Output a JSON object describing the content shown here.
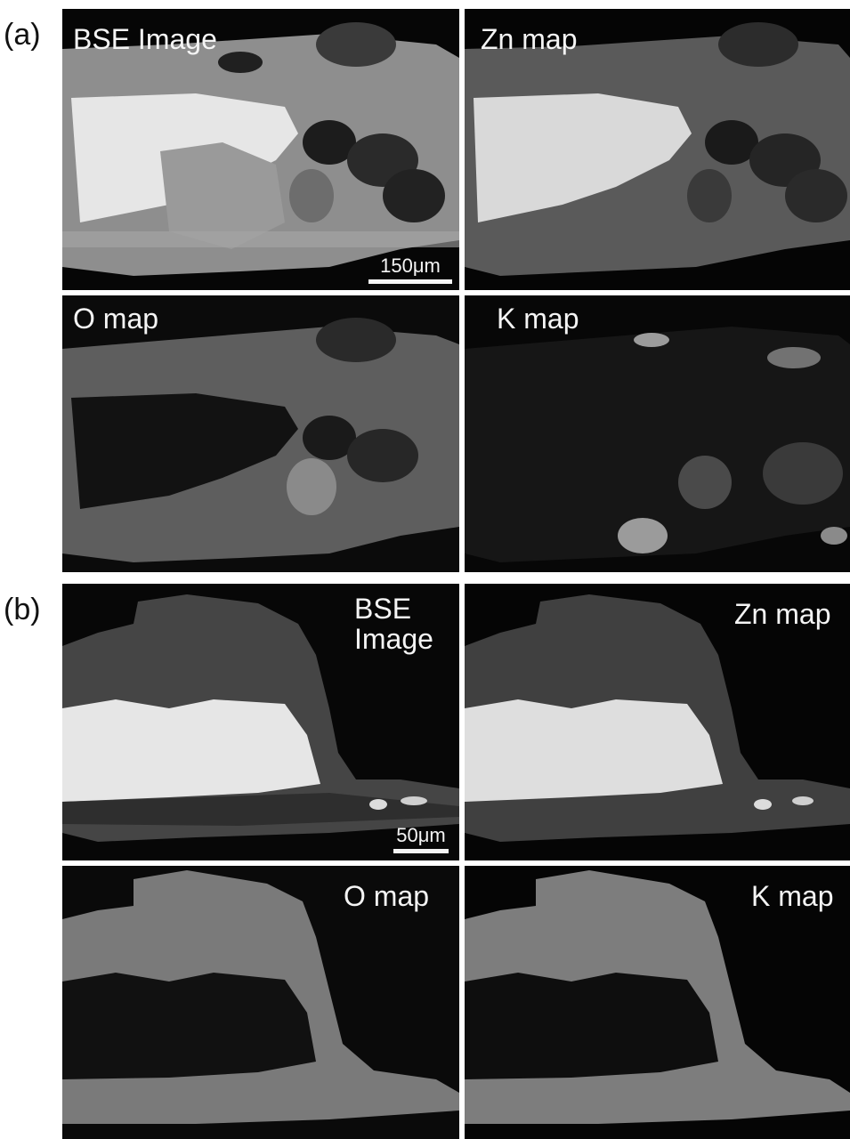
{
  "figure": {
    "part_a": {
      "label": "(a)",
      "panels": [
        {
          "id": "a-bse",
          "title": "BSE Image",
          "scale_bar": "150μm"
        },
        {
          "id": "a-zn",
          "title": "Zn map"
        },
        {
          "id": "a-o",
          "title": "O map"
        },
        {
          "id": "a-k",
          "title": "K map"
        }
      ]
    },
    "part_b": {
      "label": "(b)",
      "panels": [
        {
          "id": "b-bse",
          "title": "BSE\nImage",
          "scale_bar": "50μm"
        },
        {
          "id": "b-zn",
          "title": "Zn map"
        },
        {
          "id": "b-o",
          "title": "O map"
        },
        {
          "id": "b-k",
          "title": "K map"
        }
      ]
    }
  }
}
